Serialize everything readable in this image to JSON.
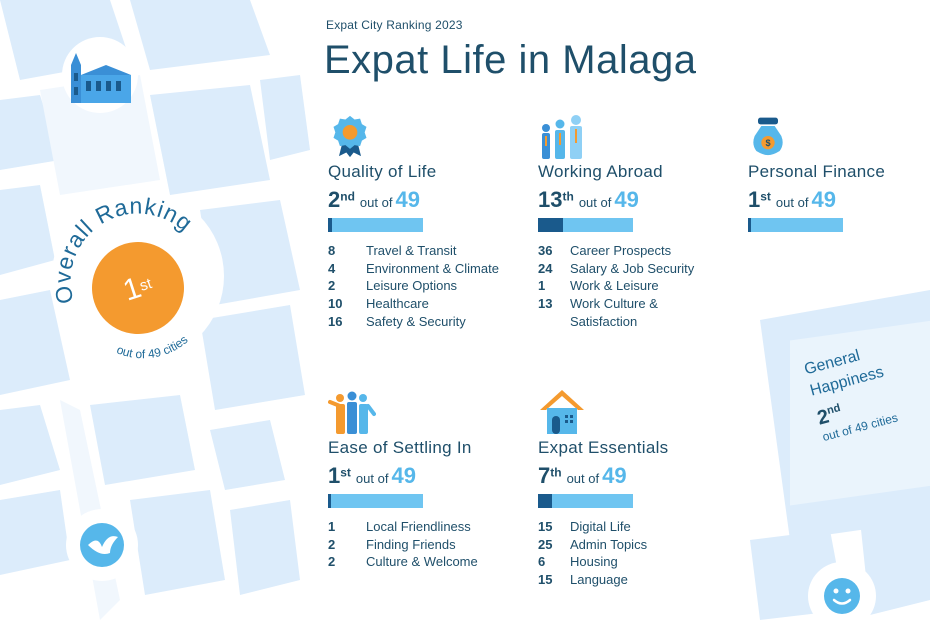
{
  "header": {
    "eyebrow": "Expat City Ranking 2023",
    "title": "Expat Life in Malaga"
  },
  "overall": {
    "label": "Overall Ranking",
    "rank": "1",
    "suffix": "st",
    "subtitle": "out of 49 cities"
  },
  "colors": {
    "accent": "#f49a2f",
    "navy": "#1f4f6a",
    "sky": "#56b7ea",
    "bar": "#6fc5f1",
    "bar_fill": "#1a5a8c",
    "map_block": "#dcecfb"
  },
  "categories": [
    {
      "icon": "medal-icon",
      "title": "Quality of Life",
      "rank": "2",
      "suffix": "nd",
      "out_of_label": "out of",
      "total": "49",
      "rank_fraction": 0.0408,
      "metrics": [
        {
          "rank": "8",
          "label": "Travel & Transit"
        },
        {
          "rank": "4",
          "label": "Environment & Climate"
        },
        {
          "rank": "2",
          "label": "Leisure Options"
        },
        {
          "rank": "10",
          "label": "Healthcare"
        },
        {
          "rank": "16",
          "label": "Safety & Security"
        }
      ]
    },
    {
      "icon": "workers-icon",
      "title": "Working Abroad",
      "rank": "13",
      "suffix": "th",
      "out_of_label": "out of",
      "total": "49",
      "rank_fraction": 0.2653,
      "metrics": [
        {
          "rank": "36",
          "label": "Career Prospects"
        },
        {
          "rank": "24",
          "label": "Salary & Job Security"
        },
        {
          "rank": "1",
          "label": "Work & Leisure"
        },
        {
          "rank": "13",
          "label": "Work Culture & Satisfaction"
        }
      ]
    },
    {
      "icon": "money-bag-icon",
      "title": "Personal Finance",
      "rank": "1",
      "suffix": "st",
      "out_of_label": "out of",
      "total": "49",
      "rank_fraction": 0.0204,
      "metrics": []
    },
    {
      "icon": "people-group-icon",
      "title": "Ease of Settling In",
      "rank": "1",
      "suffix": "st",
      "out_of_label": "out of",
      "total": "49",
      "rank_fraction": 0.0204,
      "metrics": [
        {
          "rank": "1",
          "label": "Local Friendliness"
        },
        {
          "rank": "2",
          "label": "Finding Friends"
        },
        {
          "rank": "2",
          "label": "Culture & Welcome"
        }
      ]
    },
    {
      "icon": "house-icon",
      "title": "Expat Essentials",
      "rank": "7",
      "suffix": "th",
      "out_of_label": "out of",
      "total": "49",
      "rank_fraction": 0.1429,
      "metrics": [
        {
          "rank": "15",
          "label": "Digital Life"
        },
        {
          "rank": "25",
          "label": "Admin Topics"
        },
        {
          "rank": "6",
          "label": "Housing"
        },
        {
          "rank": "15",
          "label": "Language"
        }
      ]
    }
  ],
  "general_happiness": {
    "title_line1": "General",
    "title_line2": "Happiness",
    "rank": "2",
    "suffix": "nd",
    "subtitle": "out of 49 cities"
  },
  "decor": {
    "cathedral_icon": "cathedral-icon",
    "bird_icon": "bird-icon",
    "smiley_icon": "smiley-icon"
  }
}
